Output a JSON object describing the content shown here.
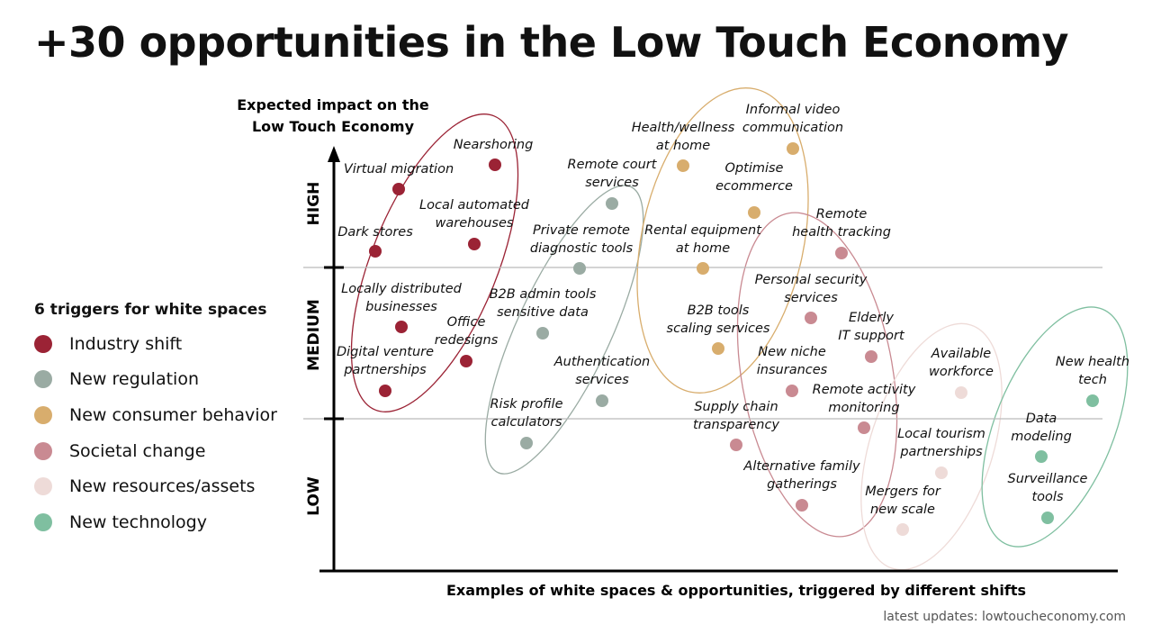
{
  "title": "+30 opportunities in the Low Touch Economy",
  "footer": "latest updates: lowtoucheconomy.com",
  "legend": {
    "title": "6 triggers for white spaces",
    "items": [
      {
        "label": "Industry shift",
        "color": "#9b2335"
      },
      {
        "label": "New regulation",
        "color": "#9aaba3"
      },
      {
        "label": "New consumer behavior",
        "color": "#d8ad6d"
      },
      {
        "label": "Societal change",
        "color": "#c98a92"
      },
      {
        "label": "New resources/assets",
        "color": "#eedbd8"
      },
      {
        "label": "New technology",
        "color": "#7fbfa0"
      }
    ]
  },
  "chart_data": {
    "type": "scatter",
    "title": "+30 opportunities in the Low Touch Economy",
    "ylabel": [
      "Expected impact on the",
      "Low Touch Economy"
    ],
    "xlabel": "Examples of white spaces & opportunities, triggered by different shifts",
    "y_bands": [
      "HIGH",
      "MEDIUM",
      "LOW"
    ],
    "points": [
      {
        "label": [
          "Virtual migration"
        ],
        "trigger": "Industry shift",
        "impact": "HIGH"
      },
      {
        "label": [
          "Nearshoring"
        ],
        "trigger": "Industry shift",
        "impact": "HIGH"
      },
      {
        "label": [
          "Dark stores"
        ],
        "trigger": "Industry shift",
        "impact": "HIGH"
      },
      {
        "label": [
          "Local automated",
          "warehouses"
        ],
        "trigger": "Industry shift",
        "impact": "HIGH"
      },
      {
        "label": [
          "Locally distributed",
          "businesses"
        ],
        "trigger": "Industry shift",
        "impact": "MEDIUM"
      },
      {
        "label": [
          "Office",
          "redesigns"
        ],
        "trigger": "Industry shift",
        "impact": "MEDIUM"
      },
      {
        "label": [
          "Digital venture",
          "partnerships"
        ],
        "trigger": "Industry shift",
        "impact": "MEDIUM"
      },
      {
        "label": [
          "Remote court",
          "services"
        ],
        "trigger": "New regulation",
        "impact": "HIGH"
      },
      {
        "label": [
          "Private remote",
          "diagnostic tools"
        ],
        "trigger": "New regulation",
        "impact": "HIGH"
      },
      {
        "label": [
          "B2B admin tools",
          "sensitive data"
        ],
        "trigger": "New regulation",
        "impact": "MEDIUM"
      },
      {
        "label": [
          "Authentication",
          "services"
        ],
        "trigger": "New regulation",
        "impact": "MEDIUM"
      },
      {
        "label": [
          "Risk profile",
          "calculators"
        ],
        "trigger": "New regulation",
        "impact": "LOW"
      },
      {
        "label": [
          "Health/wellness",
          "at home"
        ],
        "trigger": "New consumer behavior",
        "impact": "HIGH"
      },
      {
        "label": [
          "Informal video",
          "communication"
        ],
        "trigger": "New consumer behavior",
        "impact": "HIGH"
      },
      {
        "label": [
          "Optimise",
          "ecommerce"
        ],
        "trigger": "New consumer behavior",
        "impact": "HIGH"
      },
      {
        "label": [
          "Rental equipment",
          "at home"
        ],
        "trigger": "New consumer behavior",
        "impact": "HIGH"
      },
      {
        "label": [
          "B2B tools",
          "scaling services"
        ],
        "trigger": "New consumer behavior",
        "impact": "MEDIUM"
      },
      {
        "label": [
          "Remote",
          "health tracking"
        ],
        "trigger": "Societal change",
        "impact": "HIGH"
      },
      {
        "label": [
          "Personal security",
          "services"
        ],
        "trigger": "Societal change",
        "impact": "MEDIUM"
      },
      {
        "label": [
          "Elderly",
          "IT support"
        ],
        "trigger": "Societal change",
        "impact": "MEDIUM"
      },
      {
        "label": [
          "New niche",
          "insurances"
        ],
        "trigger": "Societal change",
        "impact": "MEDIUM"
      },
      {
        "label": [
          "Remote activity",
          "monitoring"
        ],
        "trigger": "Societal change",
        "impact": "LOW"
      },
      {
        "label": [
          "Supply chain",
          "transparency"
        ],
        "trigger": "Societal change",
        "impact": "LOW"
      },
      {
        "label": [
          "Alternative family",
          "gatherings"
        ],
        "trigger": "Societal change",
        "impact": "LOW"
      },
      {
        "label": [
          "Available",
          "workforce"
        ],
        "trigger": "New resources/assets",
        "impact": "MEDIUM"
      },
      {
        "label": [
          "Local tourism",
          "partnerships"
        ],
        "trigger": "New resources/assets",
        "impact": "LOW"
      },
      {
        "label": [
          "Mergers for",
          "new scale"
        ],
        "trigger": "New resources/assets",
        "impact": "LOW"
      },
      {
        "label": [
          "New health",
          "tech"
        ],
        "trigger": "New technology",
        "impact": "MEDIUM"
      },
      {
        "label": [
          "Data",
          "modeling"
        ],
        "trigger": "New technology",
        "impact": "LOW"
      },
      {
        "label": [
          "Surveillance",
          "tools"
        ],
        "trigger": "New technology",
        "impact": "LOW"
      }
    ]
  }
}
